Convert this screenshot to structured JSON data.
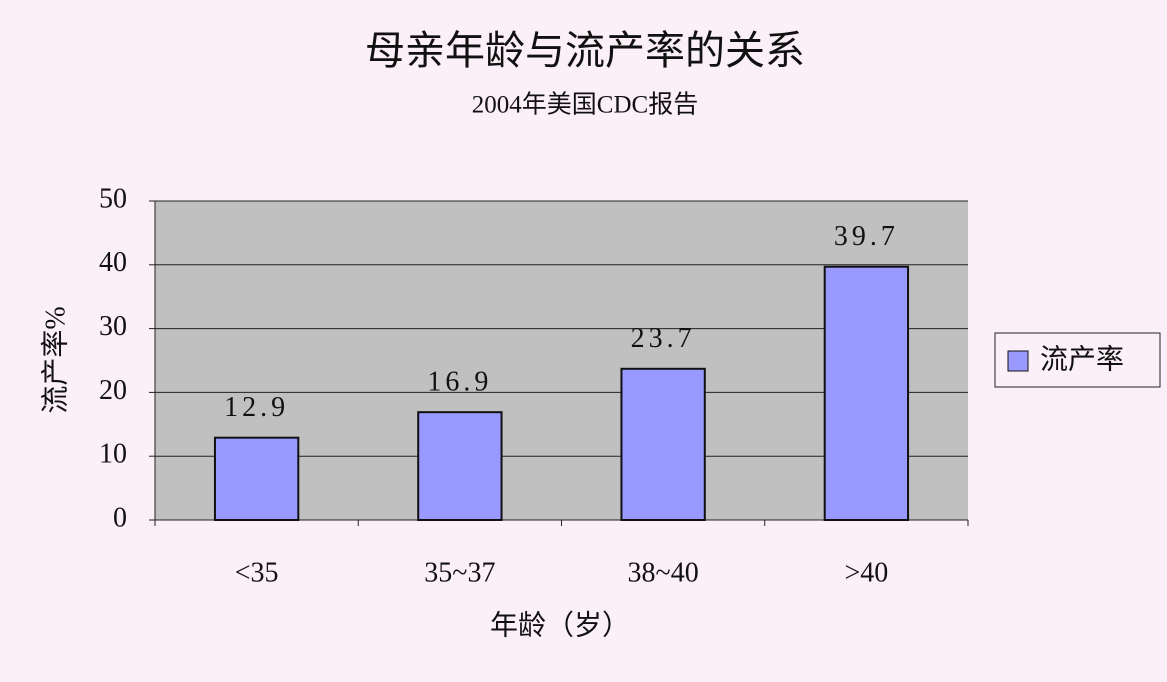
{
  "chart_data": {
    "type": "bar",
    "title": "母亲年龄与流产率的关系",
    "subtitle": "2004年美国CDC报告",
    "x_label": "年龄（岁）",
    "y_label": "流产率%",
    "categories": [
      "<35",
      "35~37",
      "38~40",
      ">40"
    ],
    "series": [
      {
        "name": "流产率",
        "color": "#9999ff",
        "values": [
          12.9,
          16.9,
          23.7,
          39.7
        ]
      }
    ],
    "ylim": [
      0,
      50
    ],
    "yticks": [
      0,
      10,
      20,
      30,
      40,
      50
    ],
    "grid": true,
    "legend": "right"
  }
}
